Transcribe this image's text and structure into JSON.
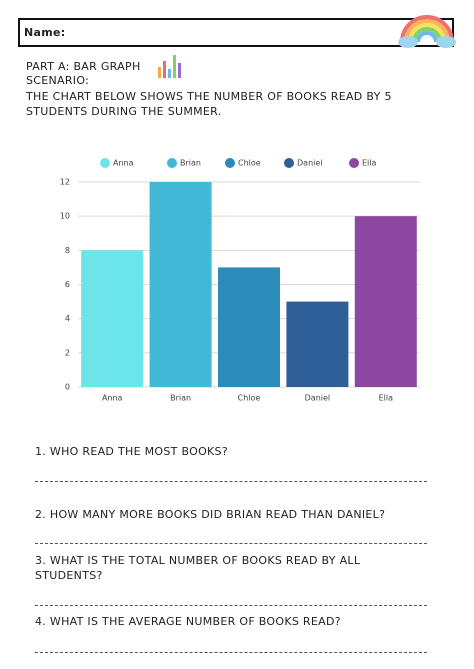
{
  "header": {
    "name_label": "Name:"
  },
  "intro": {
    "part": "PART A: BAR GRAPH",
    "scenario_label": "SCENARIO:",
    "scenario": "THE CHART BELOW SHOWS THE NUMBER OF BOOKS READ BY 5 STUDENTS DURING THE SUMMER."
  },
  "chart_data": {
    "type": "bar",
    "categories": [
      "Anna",
      "Brian",
      "Chloe",
      "Daniel",
      "Ella"
    ],
    "values": [
      8,
      12,
      7,
      5,
      10
    ],
    "colors": [
      "#6ce5e8",
      "#41b8d5",
      "#2d8bba",
      "#2f5f98",
      "#8c47a0"
    ],
    "ylim": [
      0,
      12
    ],
    "yticks": [
      0,
      2,
      4,
      6,
      8,
      10,
      12
    ],
    "grid": true,
    "legend": "top"
  },
  "questions": [
    "1. WHO READ THE MOST BOOKS?",
    "2. HOW MANY MORE BOOKS DID BRIAN READ THAN DANIEL?",
    "3. WHAT IS THE TOTAL NUMBER OF BOOKS READ BY ALL STUDENTS?",
    "4. WHAT IS THE AVERAGE NUMBER OF BOOKS READ?"
  ]
}
